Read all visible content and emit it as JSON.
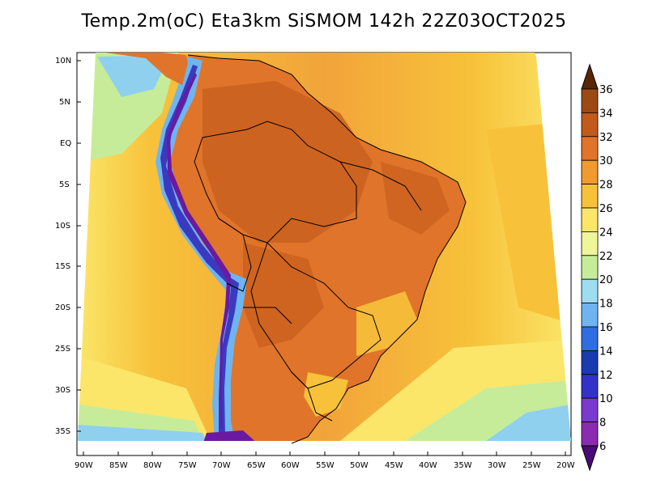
{
  "title": "Temp.2m(oC) Eta3km SiSMOM 142h 22Z03OCT2025",
  "lat_ticks": [
    "10N",
    "5N",
    "EQ",
    "5S",
    "10S",
    "15S",
    "20S",
    "25S",
    "30S",
    "35S"
  ],
  "lon_ticks": [
    "90W",
    "85W",
    "80W",
    "75W",
    "70W",
    "65W",
    "60W",
    "55W",
    "50W",
    "45W",
    "40W",
    "35W",
    "30W",
    "25W",
    "20W"
  ],
  "colorbar": {
    "labels": [
      "36",
      "34",
      "32",
      "30",
      "28",
      "26",
      "24",
      "22",
      "20",
      "18",
      "16",
      "14",
      "12",
      "10",
      "8",
      "6"
    ],
    "colors": [
      "#7a3a0e",
      "#9c4a14",
      "#c25a1a",
      "#e0742a",
      "#f09a30",
      "#f7c23a",
      "#fbe66a",
      "#eef59a",
      "#c6ec9a",
      "#9edcf0",
      "#6fb4ef",
      "#2e6ee0",
      "#1a3ab0",
      "#3232c8",
      "#7a3ad0",
      "#8a2bb0",
      "#5a1090"
    ],
    "top_color": "#5a2608",
    "bottom_color": "#4a0a78"
  },
  "field_colors": {
    "ocean_warm": "#f2a43a",
    "ocean_mid": "#f7c23a",
    "ocean_cool": "#fbe66a",
    "ocean_cold": "#c6ec9a",
    "ocean_coldest": "#8fd0ef",
    "land_hot": "#e07a2a",
    "land_hotter": "#c9601e",
    "andes_cold": "#3a3ac0",
    "andes_coldest": "#6a1aa0",
    "andes_edge": "#6fb4ef"
  }
}
